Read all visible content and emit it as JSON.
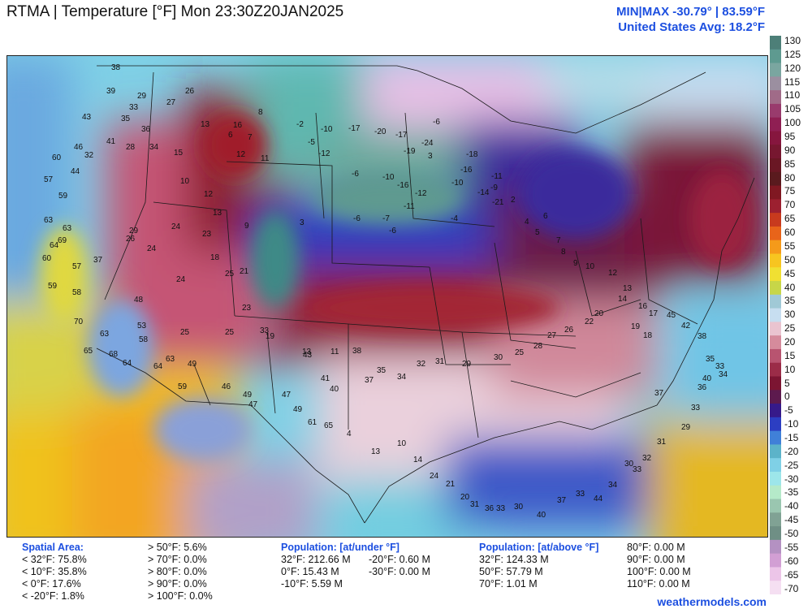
{
  "header": {
    "title": "RTMA | Temperature [°F]  Mon 23:30Z20JAN2025",
    "minmax": "MIN|MAX -30.79°  |  83.59°F",
    "avg": "United States Avg: 18.2°F"
  },
  "colors": {
    "frame": "#222222",
    "accent": "#1c4fe0",
    "ocean": "#7fd0e6"
  },
  "scale": {
    "ticks": [
      "130",
      "125",
      "120",
      "115",
      "110",
      "105",
      "100",
      "95",
      "90",
      "85",
      "80",
      "75",
      "70",
      "65",
      "60",
      "55",
      "50",
      "45",
      "40",
      "35",
      "30",
      "25",
      "20",
      "15",
      "10",
      "5",
      "0",
      "-5",
      "-10",
      "-15",
      "-20",
      "-25",
      "-30",
      "-35",
      "-40",
      "-45",
      "-50",
      "-55",
      "-60",
      "-65",
      "-70"
    ],
    "colors": [
      "#4d7f78",
      "#5e9a90",
      "#7aa6a0",
      "#9b8fa0",
      "#a06b88",
      "#993b6d",
      "#8f1f53",
      "#86163e",
      "#771730",
      "#6a1724",
      "#5a1a1e",
      "#801822",
      "#9c2030",
      "#c83a1e",
      "#e8641a",
      "#f59a1a",
      "#f7c520",
      "#f0e032",
      "#c7d648",
      "#a0c9d6",
      "#c7def0",
      "#eac4d0",
      "#d58b9c",
      "#b85470",
      "#9b2c48",
      "#7c1532",
      "#5d1a4e",
      "#361a8a",
      "#2c3ec2",
      "#4080d8",
      "#5cb3c9",
      "#7fd0e6",
      "#9de6ea",
      "#b5eac9",
      "#9ac6b0",
      "#80a294",
      "#6f8f85",
      "#b491c2",
      "#d29fd4",
      "#ecc5e8",
      "#f5dff2"
    ]
  },
  "map_labels": [
    {
      "t": "38"
    },
    {
      "t": "39"
    },
    {
      "t": "33"
    },
    {
      "t": "29"
    },
    {
      "t": "27"
    },
    {
      "t": "26"
    },
    {
      "t": "35"
    },
    {
      "t": "36"
    },
    {
      "t": "41"
    },
    {
      "t": "34"
    },
    {
      "t": "28"
    },
    {
      "t": "43"
    },
    {
      "t": "46"
    },
    {
      "t": "60"
    },
    {
      "t": "57"
    },
    {
      "t": "59"
    },
    {
      "t": "32"
    },
    {
      "t": "44"
    },
    {
      "t": "63"
    },
    {
      "t": "63"
    },
    {
      "t": "69"
    },
    {
      "t": "64"
    },
    {
      "t": "60"
    },
    {
      "t": "57"
    },
    {
      "t": "37"
    },
    {
      "t": "59"
    },
    {
      "t": "58"
    },
    {
      "t": "70"
    },
    {
      "t": "63"
    },
    {
      "t": "65"
    },
    {
      "t": "68"
    },
    {
      "t": "64"
    },
    {
      "t": "64"
    },
    {
      "t": "63"
    },
    {
      "t": "49"
    },
    {
      "t": "59"
    },
    {
      "t": "46"
    },
    {
      "t": "49"
    },
    {
      "t": "47"
    },
    {
      "t": "53"
    },
    {
      "t": "58"
    },
    {
      "t": "48"
    },
    {
      "t": "25"
    },
    {
      "t": "25"
    },
    {
      "t": "24"
    },
    {
      "t": "29"
    },
    {
      "t": "26"
    },
    {
      "t": "24"
    },
    {
      "t": "24"
    },
    {
      "t": "23"
    },
    {
      "t": "18"
    },
    {
      "t": "21"
    },
    {
      "t": "25"
    },
    {
      "t": "23"
    },
    {
      "t": "19"
    },
    {
      "t": "33"
    },
    {
      "t": "13"
    },
    {
      "t": "11"
    },
    {
      "t": "13"
    },
    {
      "t": "16"
    },
    {
      "t": "8"
    },
    {
      "t": "7"
    },
    {
      "t": "6"
    },
    {
      "t": "12"
    },
    {
      "t": "11"
    },
    {
      "t": "15"
    },
    {
      "t": "10"
    },
    {
      "t": "12"
    },
    {
      "t": "13"
    },
    {
      "t": "9"
    },
    {
      "t": "3"
    },
    {
      "t": "-2"
    },
    {
      "t": "-5"
    },
    {
      "t": "-12"
    },
    {
      "t": "-10"
    },
    {
      "t": "-17"
    },
    {
      "t": "-20"
    },
    {
      "t": "-17"
    },
    {
      "t": "-24"
    },
    {
      "t": "-19"
    },
    {
      "t": "-6"
    },
    {
      "t": "-10"
    },
    {
      "t": "-16"
    },
    {
      "t": "-12"
    },
    {
      "t": "-11"
    },
    {
      "t": "-6"
    },
    {
      "t": "-7"
    },
    {
      "t": "-4"
    },
    {
      "t": "-6"
    },
    {
      "t": "-16"
    },
    {
      "t": "-10"
    },
    {
      "t": "-11"
    },
    {
      "t": "-9"
    },
    {
      "t": "-14"
    },
    {
      "t": "-21"
    },
    {
      "t": "-18"
    },
    {
      "t": "-6"
    },
    {
      "t": "3"
    },
    {
      "t": "2"
    },
    {
      "t": "4"
    },
    {
      "t": "5"
    },
    {
      "t": "6"
    },
    {
      "t": "7"
    },
    {
      "t": "8"
    },
    {
      "t": "9"
    },
    {
      "t": "10"
    },
    {
      "t": "12"
    },
    {
      "t": "13"
    },
    {
      "t": "14"
    },
    {
      "t": "16"
    },
    {
      "t": "17"
    },
    {
      "t": "18"
    },
    {
      "t": "19"
    },
    {
      "t": "20"
    },
    {
      "t": "22"
    },
    {
      "t": "26"
    },
    {
      "t": "27"
    },
    {
      "t": "28"
    },
    {
      "t": "25"
    },
    {
      "t": "30"
    },
    {
      "t": "29"
    },
    {
      "t": "31"
    },
    {
      "t": "32"
    },
    {
      "t": "34"
    },
    {
      "t": "35"
    },
    {
      "t": "37"
    },
    {
      "t": "38"
    },
    {
      "t": "40"
    },
    {
      "t": "41"
    },
    {
      "t": "43"
    },
    {
      "t": "47"
    },
    {
      "t": "49"
    },
    {
      "t": "61"
    },
    {
      "t": "65"
    },
    {
      "t": "4"
    },
    {
      "t": "13"
    },
    {
      "t": "10"
    },
    {
      "t": "14"
    },
    {
      "t": "24"
    },
    {
      "t": "21"
    },
    {
      "t": "20"
    },
    {
      "t": "31"
    },
    {
      "t": "36"
    },
    {
      "t": "33"
    },
    {
      "t": "30"
    },
    {
      "t": "40"
    },
    {
      "t": "37"
    },
    {
      "t": "33"
    },
    {
      "t": "44"
    },
    {
      "t": "34"
    },
    {
      "t": "30"
    },
    {
      "t": "33"
    },
    {
      "t": "32"
    },
    {
      "t": "31"
    },
    {
      "t": "29"
    },
    {
      "t": "33"
    },
    {
      "t": "36"
    },
    {
      "t": "40"
    },
    {
      "t": "34"
    },
    {
      "t": "33"
    },
    {
      "t": "35"
    },
    {
      "t": "38"
    },
    {
      "t": "42"
    },
    {
      "t": "45"
    },
    {
      "t": "37"
    }
  ],
  "stats": {
    "spatial": {
      "header": "Spatial Area:",
      "col1": [
        "< 32°F: 75.8%",
        "< 10°F: 35.8%",
        "< 0°F: 17.6%",
        "< -20°F: 1.8%"
      ],
      "col2": [
        "> 50°F: 5.6%",
        "> 70°F: 0.0%",
        "> 80°F: 0.0%",
        "> 90°F: 0.0%",
        "> 100°F: 0.0%"
      ]
    },
    "pop_under": {
      "header": "Population: [at/under °F]",
      "col1": [
        "32°F: 212.66 M",
        "0°F: 15.43 M",
        "-10°F: 5.59 M"
      ],
      "col2": [
        "-20°F: 0.60 M",
        "-30°F: 0.00 M"
      ]
    },
    "pop_above": {
      "header": "Population: [at/above °F]",
      "col1": [
        "32°F: 124.33 M",
        "50°F: 57.79 M",
        "70°F: 1.01 M"
      ],
      "col2": [
        "80°F: 0.00 M",
        "90°F: 0.00 M",
        "100°F: 0.00 M",
        "110°F: 0.00 M"
      ]
    }
  },
  "credit": "weathermodels.com"
}
